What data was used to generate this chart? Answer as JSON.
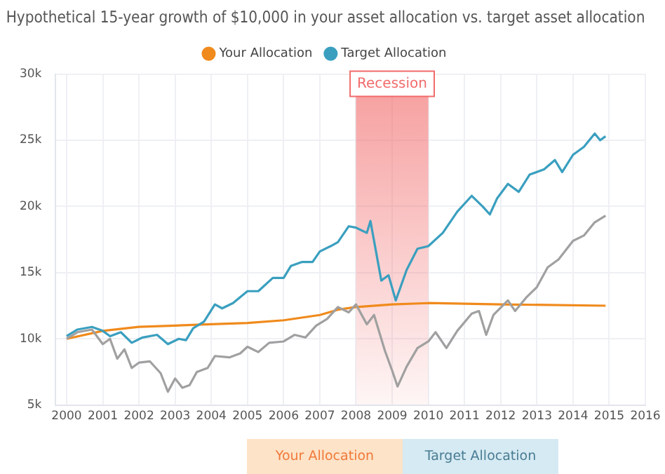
{
  "chart_data": {
    "type": "line",
    "title": "Hypothetical 15-year growth of $10,000 in your asset allocation vs. target asset allocation",
    "xlim": [
      1999.7,
      2016
    ],
    "xticks": [
      2000,
      2001,
      2002,
      2003,
      2004,
      2005,
      2006,
      2007,
      2008,
      2009,
      2010,
      2011,
      2012,
      2013,
      2014,
      2015,
      2016
    ],
    "ylim": [
      5000,
      30000
    ],
    "yticks": [
      {
        "value": 5000,
        "label": "5k"
      },
      {
        "value": 10000,
        "label": "10k"
      },
      {
        "value": 15000,
        "label": "15k"
      },
      {
        "value": 20000,
        "label": "20k"
      },
      {
        "value": 25000,
        "label": "25k"
      },
      {
        "value": 30000,
        "label": "30k"
      }
    ],
    "grid": true,
    "legend": "top",
    "marker": "none",
    "bands": [
      {
        "axis": "x",
        "from": 2008,
        "to": 2010,
        "label": "Recession",
        "color": "#f26b6b"
      }
    ],
    "annotations": [
      "Your Allocation",
      "Target Allocation"
    ],
    "series": [
      {
        "name": "Your Allocation",
        "color": "#f08a1c",
        "x": [
          2000,
          2001,
          2002,
          2003,
          2004,
          2005,
          2006,
          2007,
          2007.5,
          2008,
          2009,
          2010,
          2012,
          2014.9
        ],
        "values": [
          10000,
          10600,
          10900,
          11000,
          11100,
          11200,
          11400,
          11800,
          12200,
          12400,
          12600,
          12700,
          12600,
          12500
        ]
      },
      {
        "name": "Target Allocation",
        "color": "#3a9fbf",
        "x": [
          2000,
          2000.3,
          2000.7,
          2001,
          2001.2,
          2001.5,
          2001.8,
          2002.1,
          2002.5,
          2002.8,
          2003.1,
          2003.3,
          2003.5,
          2003.8,
          2004.1,
          2004.3,
          2004.6,
          2005,
          2005.3,
          2005.7,
          2006,
          2006.2,
          2006.5,
          2006.8,
          2007,
          2007.3,
          2007.5,
          2007.8,
          2008,
          2008.3,
          2008.4,
          2008.7,
          2008.9,
          2009.1,
          2009.4,
          2009.7,
          2010,
          2010.4,
          2010.8,
          2011.2,
          2011.5,
          2011.7,
          2011.9,
          2012.2,
          2012.5,
          2012.8,
          2013.2,
          2013.5,
          2013.7,
          2014,
          2014.3,
          2014.6,
          2014.75,
          2014.9
        ],
        "values": [
          10200,
          10700,
          10900,
          10600,
          10200,
          10500,
          9700,
          10100,
          10300,
          9600,
          10000,
          9900,
          10800,
          11300,
          12600,
          12300,
          12700,
          13600,
          13600,
          14600,
          14600,
          15500,
          15800,
          15800,
          16600,
          17000,
          17300,
          18500,
          18400,
          18000,
          18900,
          14400,
          14800,
          12900,
          15200,
          16800,
          17000,
          18000,
          19600,
          20800,
          20000,
          19400,
          20600,
          21700,
          21100,
          22400,
          22800,
          23500,
          22600,
          23900,
          24500,
          25500,
          25000,
          25300
        ]
      },
      {
        "color": "#a0a0a0",
        "x": [
          2000,
          2000.3,
          2000.7,
          2001,
          2001.2,
          2001.4,
          2001.6,
          2001.8,
          2002,
          2002.3,
          2002.6,
          2002.8,
          2003,
          2003.2,
          2003.4,
          2003.6,
          2003.9,
          2004.1,
          2004.5,
          2004.8,
          2005,
          2005.3,
          2005.6,
          2006,
          2006.3,
          2006.6,
          2006.9,
          2007.2,
          2007.5,
          2007.8,
          2008,
          2008.3,
          2008.5,
          2008.8,
          2009,
          2009.15,
          2009.4,
          2009.7,
          2010,
          2010.2,
          2010.5,
          2010.8,
          2011.2,
          2011.4,
          2011.6,
          2011.8,
          2012.2,
          2012.4,
          2012.7,
          2013,
          2013.3,
          2013.6,
          2014,
          2014.3,
          2014.6,
          2014.9
        ],
        "values": [
          10000,
          10500,
          10700,
          9600,
          10000,
          8500,
          9200,
          7800,
          8200,
          8300,
          7400,
          6000,
          7000,
          6300,
          6500,
          7500,
          7800,
          8700,
          8600,
          8900,
          9400,
          9000,
          9700,
          9800,
          10300,
          10100,
          11000,
          11500,
          12400,
          12000,
          12600,
          11100,
          11800,
          9100,
          7600,
          6400,
          7900,
          9300,
          9800,
          10500,
          9300,
          10600,
          11900,
          12100,
          10300,
          11800,
          12900,
          12100,
          13100,
          13900,
          15400,
          16000,
          17400,
          17800,
          18800,
          19300
        ]
      }
    ]
  }
}
